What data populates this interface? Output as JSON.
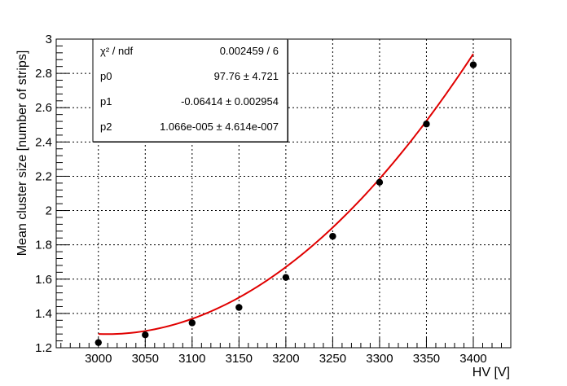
{
  "chart_data": {
    "type": "scatter",
    "title": "",
    "xlabel": "HV [V]",
    "ylabel": "Mean cluster size [number of strips]",
    "xlim": [
      2955,
      3440
    ],
    "ylim": [
      1.2,
      3.0
    ],
    "grid": true,
    "x_ticks": [
      "3000",
      "3050",
      "3100",
      "3150",
      "3200",
      "3250",
      "3300",
      "3350",
      "3400"
    ],
    "y_ticks": [
      "1.2",
      "1.4",
      "1.6",
      "1.8",
      "2",
      "2.2",
      "2.4",
      "2.6",
      "2.8",
      "3"
    ],
    "series": [
      {
        "x": [
          3000,
          3050,
          3100,
          3150,
          3200,
          3250,
          3300,
          3350,
          3400
        ],
        "y": [
          1.23,
          1.275,
          1.345,
          1.435,
          1.61,
          1.85,
          2.165,
          2.505,
          2.85
        ],
        "color": "#000000"
      }
    ],
    "fit": {
      "function": "pol2",
      "color": "#e00000",
      "x_range": [
        3000,
        3400
      ],
      "params": [
        97.76,
        -0.06414,
        1.066e-05
      ]
    },
    "stats_box": {
      "position": "top-left",
      "rows": [
        {
          "label": "χ² / ndf",
          "value": "0.002459 / 6"
        },
        {
          "label": "p0",
          "value": "97.76 ± 4.721"
        },
        {
          "label": "p1",
          "value": "-0.06414 ± 0.002954"
        },
        {
          "label": "p2",
          "value": "1.066e-005 ± 4.614e-007"
        }
      ]
    }
  }
}
